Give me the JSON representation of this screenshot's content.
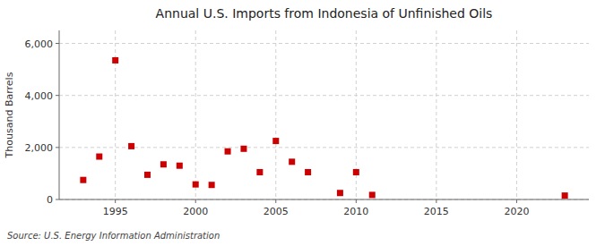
{
  "chart_data": {
    "type": "scatter",
    "title": "Annual U.S. Imports from Indonesia of Unfinished Oils",
    "y_label": "Thousand Barrels",
    "annotations": [
      "Source: U.S. Energy Information Administration"
    ],
    "x": [
      1993,
      1994,
      1995,
      1996,
      1997,
      1998,
      1999,
      2000,
      2001,
      2002,
      2003,
      2004,
      2005,
      2006,
      2007,
      2009,
      2010,
      2011,
      2023
    ],
    "values": [
      750,
      1650,
      5350,
      2050,
      950,
      1350,
      1300,
      580,
      560,
      1850,
      1950,
      1050,
      2250,
      1450,
      1050,
      250,
      1050,
      175,
      150
    ],
    "color": "#cc0000",
    "marker": "square",
    "xlim": [
      1991.5,
      2024.5
    ],
    "xticks": [
      1995,
      2000,
      2005,
      2010,
      2015,
      2020
    ],
    "ylim": [
      0,
      6500
    ],
    "yticks": [
      0,
      {
        "value": 2000,
        "label": "2,000"
      },
      {
        "value": 4000,
        "label": "4,000"
      },
      {
        "value": 6000,
        "label": "6,000"
      }
    ],
    "grid": true
  }
}
